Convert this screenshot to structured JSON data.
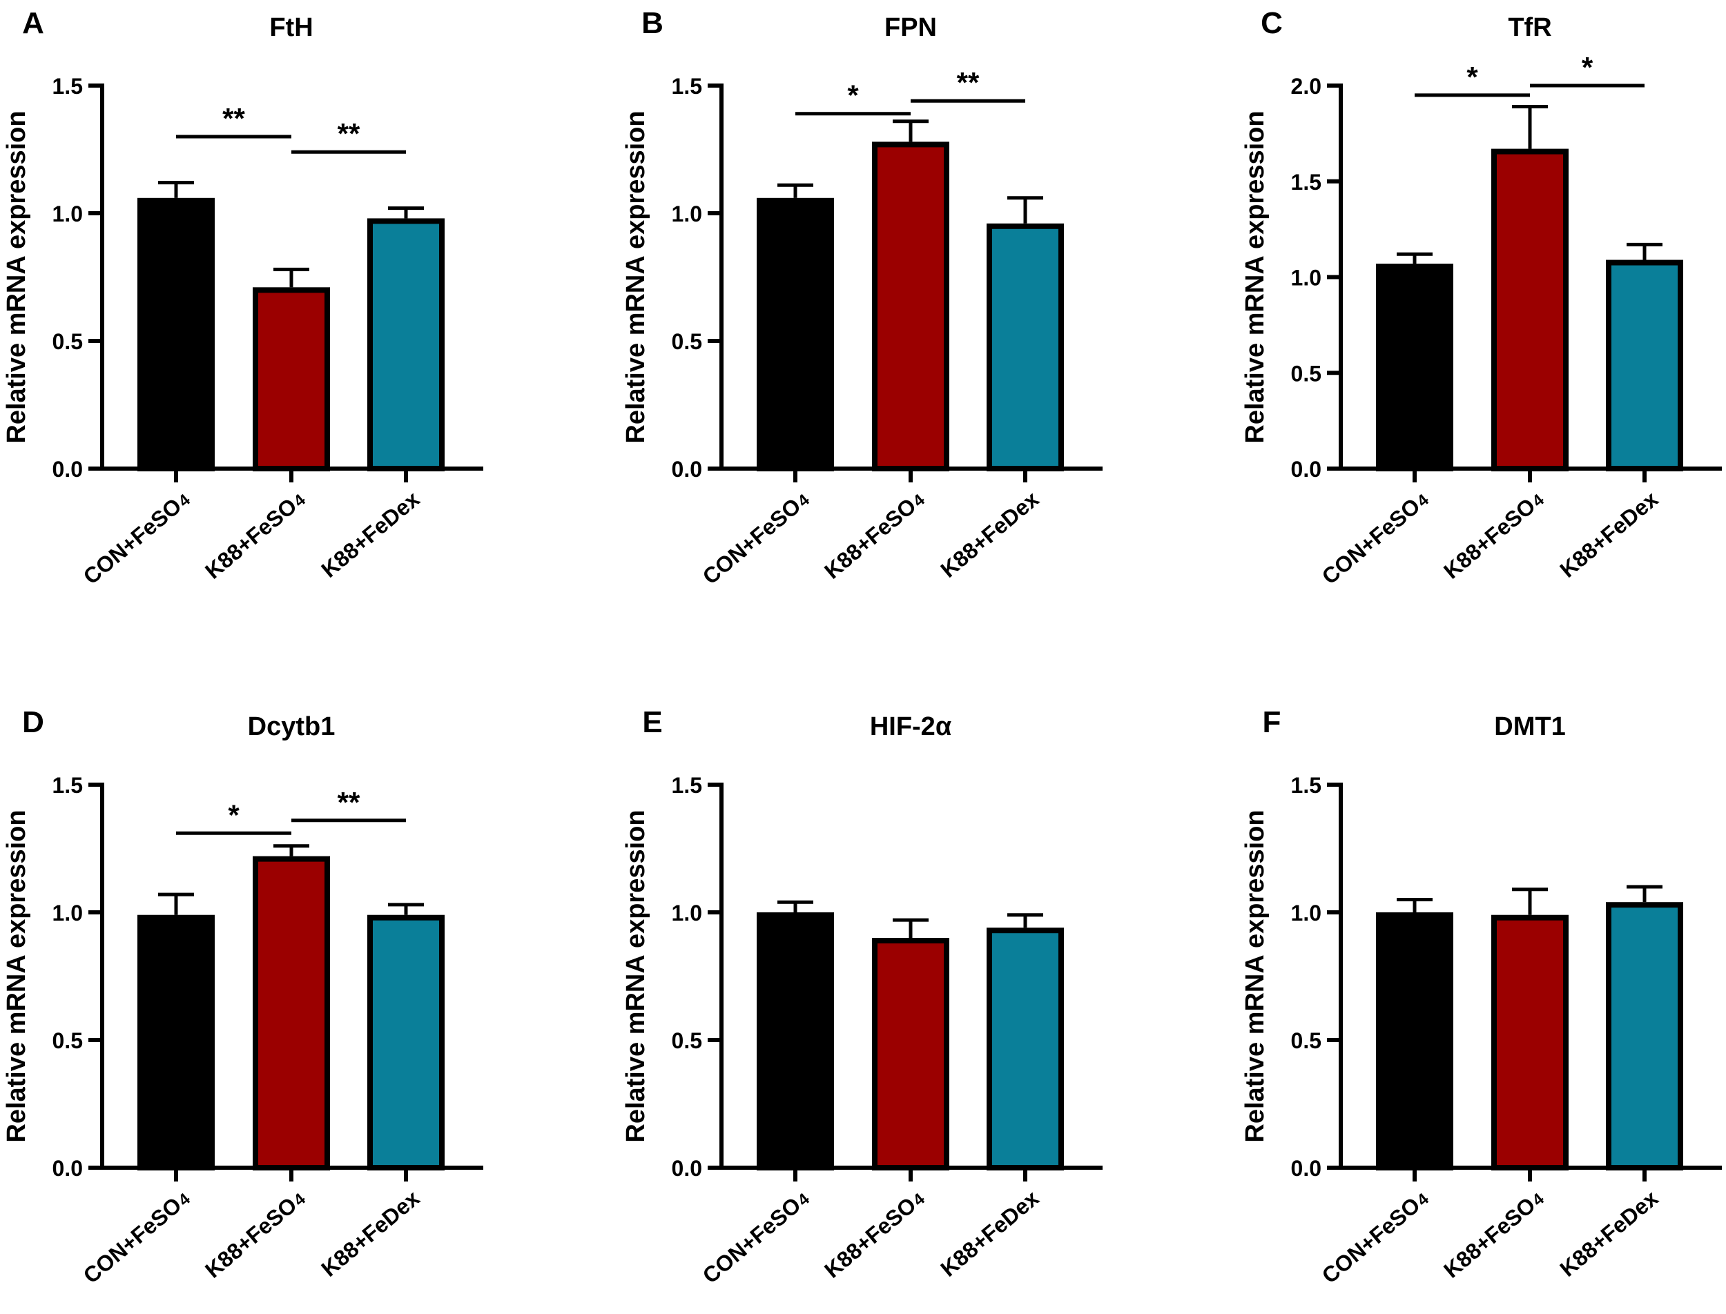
{
  "colors": {
    "CON+FeSO4": "#000000",
    "K88+FeSO4": "#9b0000",
    "K88+FeDex": "#0a7f99",
    "axis": "#000000"
  },
  "chart_data": [
    {
      "type": "bar",
      "panel": "A",
      "title": "FtH",
      "ylabel": "Relative mRNA expression",
      "ylim": [
        0,
        1.5
      ],
      "yticks": [
        "0.0",
        "0.5",
        "1.0",
        "1.5"
      ],
      "categories": [
        "CON+FeSO4",
        "K88+FeSO4",
        "K88+FeDex"
      ],
      "category_labels": [
        [
          "CON+FeSO",
          "4"
        ],
        [
          "K88+FeSO",
          "4"
        ],
        [
          "K88+FeDex",
          ""
        ]
      ],
      "values": [
        1.06,
        0.71,
        0.98
      ],
      "errors": [
        0.06,
        0.07,
        0.04
      ],
      "significance": [
        {
          "from": 0,
          "to": 1,
          "label": "**",
          "y": 1.3
        },
        {
          "from": 1,
          "to": 2,
          "label": "**",
          "y": 1.24
        }
      ]
    },
    {
      "type": "bar",
      "panel": "B",
      "title": "FPN",
      "ylabel": "Relative mRNA expression",
      "ylim": [
        0,
        1.5
      ],
      "yticks": [
        "0.0",
        "0.5",
        "1.0",
        "1.5"
      ],
      "categories": [
        "CON+FeSO4",
        "K88+FeSO4",
        "K88+FeDex"
      ],
      "category_labels": [
        [
          "CON+FeSO",
          "4"
        ],
        [
          "K88+FeSO",
          "4"
        ],
        [
          "K88+FeDex",
          ""
        ]
      ],
      "values": [
        1.06,
        1.28,
        0.96
      ],
      "errors": [
        0.05,
        0.08,
        0.1
      ],
      "significance": [
        {
          "from": 0,
          "to": 1,
          "label": "*",
          "y": 1.39
        },
        {
          "from": 1,
          "to": 2,
          "label": "**",
          "y": 1.44
        }
      ]
    },
    {
      "type": "bar",
      "panel": "C",
      "title": "TfR",
      "ylabel": "Relative mRNA expression",
      "ylim": [
        0,
        2.0
      ],
      "yticks": [
        "0.0",
        "0.5",
        "1.0",
        "1.5",
        "2.0"
      ],
      "categories": [
        "CON+FeSO4",
        "K88+FeSO4",
        "K88+FeDex"
      ],
      "category_labels": [
        [
          "CON+FeSO",
          "4"
        ],
        [
          "K88+FeSO",
          "4"
        ],
        [
          "K88+FeDex",
          ""
        ]
      ],
      "values": [
        1.07,
        1.67,
        1.09
      ],
      "errors": [
        0.05,
        0.22,
        0.08
      ],
      "significance": [
        {
          "from": 0,
          "to": 1,
          "label": "*",
          "y": 1.95
        },
        {
          "from": 1,
          "to": 2,
          "label": "*",
          "y": 2.0
        }
      ]
    },
    {
      "type": "bar",
      "panel": "D",
      "title": "Dcytb1",
      "ylabel": "Relative mRNA expression",
      "ylim": [
        0,
        1.5
      ],
      "yticks": [
        "0.0",
        "0.5",
        "1.0",
        "1.5"
      ],
      "categories": [
        "CON+FeSO4",
        "K88+FeSO4",
        "K88+FeDex"
      ],
      "category_labels": [
        [
          "CON+FeSO",
          "4"
        ],
        [
          "K88+FeSO",
          "4"
        ],
        [
          "K88+FeDex",
          ""
        ]
      ],
      "values": [
        0.99,
        1.22,
        0.99
      ],
      "errors": [
        0.08,
        0.04,
        0.04
      ],
      "significance": [
        {
          "from": 0,
          "to": 1,
          "label": "*",
          "y": 1.31
        },
        {
          "from": 1,
          "to": 2,
          "label": "**",
          "y": 1.36
        }
      ]
    },
    {
      "type": "bar",
      "panel": "E",
      "title": "HIF-2α",
      "ylabel": "Relative mRNA expression",
      "ylim": [
        0,
        1.5
      ],
      "yticks": [
        "0.0",
        "0.5",
        "1.0",
        "1.5"
      ],
      "categories": [
        "CON+FeSO4",
        "K88+FeSO4",
        "K88+FeDex"
      ],
      "category_labels": [
        [
          "CON+FeSO",
          "4"
        ],
        [
          "K88+FeSO",
          "4"
        ],
        [
          "K88+FeDex",
          ""
        ]
      ],
      "values": [
        1.0,
        0.9,
        0.94
      ],
      "errors": [
        0.04,
        0.07,
        0.05
      ],
      "significance": []
    },
    {
      "type": "bar",
      "panel": "F",
      "title": "DMT1",
      "ylabel": "Relative mRNA expression",
      "ylim": [
        0,
        1.5
      ],
      "yticks": [
        "0.0",
        "0.5",
        "1.0",
        "1.5"
      ],
      "categories": [
        "CON+FeSO4",
        "K88+FeSO4",
        "K88+FeDex"
      ],
      "category_labels": [
        [
          "CON+FeSO",
          "4"
        ],
        [
          "K88+FeSO",
          "4"
        ],
        [
          "K88+FeDex",
          ""
        ]
      ],
      "values": [
        1.0,
        0.99,
        1.04
      ],
      "errors": [
        0.05,
        0.1,
        0.06
      ],
      "significance": []
    }
  ]
}
